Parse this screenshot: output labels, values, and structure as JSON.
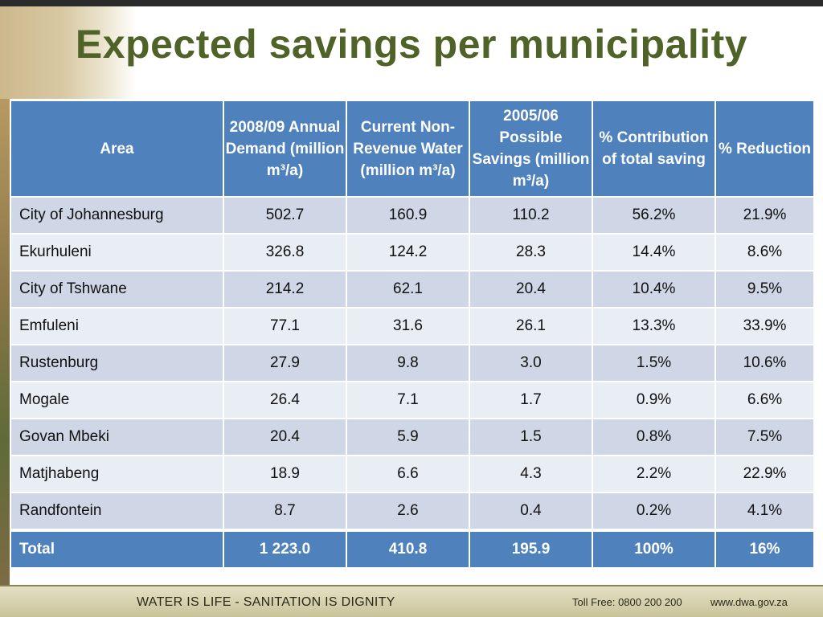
{
  "title": "Expected savings per municipality",
  "table": {
    "headers": [
      "Area",
      "2008/09 Annual Demand (million m³/a)",
      "Current Non-Revenue Water (million m³/a)",
      "2005/06 Possible Savings (million m³/a)",
      "% Contribution of total saving",
      "% Reduction"
    ],
    "rows": [
      {
        "area": "City of Johannesburg",
        "demand": "502.7",
        "nrw": "160.9",
        "savings": "110.2",
        "contribution": "56.2%",
        "reduction": "21.9%"
      },
      {
        "area": "Ekurhuleni",
        "demand": "326.8",
        "nrw": "124.2",
        "savings": "28.3",
        "contribution": "14.4%",
        "reduction": "8.6%"
      },
      {
        "area": "City of Tshwane",
        "demand": "214.2",
        "nrw": "62.1",
        "savings": "20.4",
        "contribution": "10.4%",
        "reduction": "9.5%"
      },
      {
        "area": "Emfuleni",
        "demand": "77.1",
        "nrw": "31.6",
        "savings": "26.1",
        "contribution": "13.3%",
        "reduction": "33.9%"
      },
      {
        "area": "Rustenburg",
        "demand": "27.9",
        "nrw": "9.8",
        "savings": "3.0",
        "contribution": "1.5%",
        "reduction": "10.6%"
      },
      {
        "area": "Mogale",
        "demand": "26.4",
        "nrw": "7.1",
        "savings": "1.7",
        "contribution": "0.9%",
        "reduction": "6.6%"
      },
      {
        "area": "Govan Mbeki",
        "demand": "20.4",
        "nrw": "5.9",
        "savings": "1.5",
        "contribution": "0.8%",
        "reduction": "7.5%"
      },
      {
        "area": "Matjhabeng",
        "demand": "18.9",
        "nrw": "6.6",
        "savings": "4.3",
        "contribution": "2.2%",
        "reduction": "22.9%"
      },
      {
        "area": "Randfontein",
        "demand": "8.7",
        "nrw": "2.6",
        "savings": "0.4",
        "contribution": "0.2%",
        "reduction": "4.1%"
      }
    ],
    "total": {
      "area": "Total",
      "demand": "1 223.0",
      "nrw": "410.8",
      "savings": "195.9",
      "contribution": "100%",
      "reduction": "16%"
    }
  },
  "footer": {
    "tagline": "WATER IS LIFE - SANITATION IS DIGNITY",
    "toll_free": "Toll Free: 0800 200 200",
    "website": "www.dwa.gov.za"
  },
  "colors": {
    "title": "#4f6228",
    "header_bg": "#4f81bd",
    "row_odd": "#cfd7e7",
    "row_even": "#e9edf4"
  }
}
